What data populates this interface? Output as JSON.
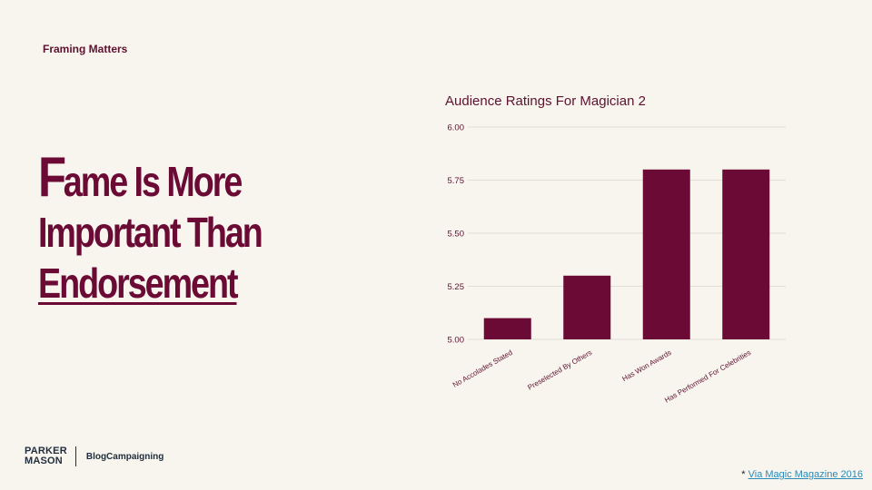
{
  "header": {
    "section_label": "Framing Matters"
  },
  "headline": {
    "first_letter": "F",
    "line1_rest": "ame Is More",
    "line2": "Important Than",
    "line3": "Endorsement"
  },
  "brand": {
    "logo_line1": "PARKER",
    "logo_line2": "MASON",
    "tagline": "BlogCampaigning"
  },
  "footnote": {
    "marker": "*",
    "link_text": "Via Magic Magazine 2016"
  },
  "colors": {
    "bar": "#6a0a35",
    "grid": "#e0dcd6",
    "text": "#5c1230",
    "background": "#f8f4ee"
  },
  "chart_data": {
    "type": "bar",
    "title": "Audience Ratings For Magician 2",
    "categories": [
      "No Accolades Stated",
      "Preselected By Others",
      "Has Won Awards",
      "Has Performed For Celebrities"
    ],
    "values": [
      5.1,
      5.3,
      5.8,
      5.8
    ],
    "yticks": [
      "5.00",
      "5.25",
      "5.50",
      "5.75",
      "6.00"
    ],
    "ylim": [
      5.0,
      6.0
    ],
    "xlabel": "",
    "ylabel": "",
    "grid": true,
    "legend": "none"
  }
}
